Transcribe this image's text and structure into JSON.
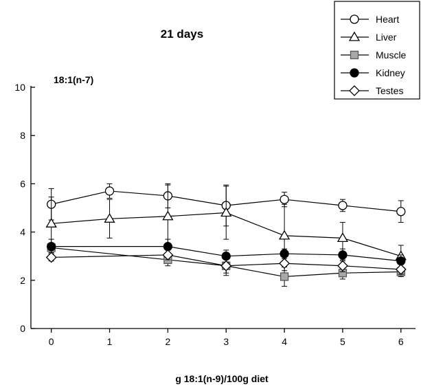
{
  "chart_data": {
    "type": "line",
    "title": "21 days",
    "subtitle": "18:1(n-7)",
    "xlabel": "g 18:1(n-9)/100g diet",
    "ylabel": "",
    "x": [
      0,
      1,
      2,
      3,
      4,
      5,
      6
    ],
    "x_ticks": [
      "0",
      "1",
      "2",
      "3",
      "4",
      "5",
      "6"
    ],
    "y_ticks": [
      "0",
      "2",
      "4",
      "6",
      "8",
      "10"
    ],
    "xlim": [
      -0.35,
      6.25
    ],
    "ylim": [
      0,
      10
    ],
    "grid": false,
    "legend_position": "top-right",
    "series": [
      {
        "name": "Heart",
        "marker": "circle-open",
        "x": [
          0,
          1,
          2,
          3,
          4,
          5,
          6
        ],
        "values": [
          5.15,
          5.7,
          5.5,
          5.1,
          5.35,
          5.1,
          4.85
        ],
        "errors": [
          0.65,
          0.3,
          0.5,
          0.85,
          0.3,
          0.25,
          0.45
        ]
      },
      {
        "name": "Liver",
        "marker": "triangle-open",
        "x": [
          0,
          1,
          2,
          3,
          4,
          5,
          6
        ],
        "values": [
          4.35,
          4.55,
          4.65,
          4.8,
          3.85,
          3.75,
          3.0
        ],
        "errors": [
          1.1,
          0.8,
          1.3,
          1.1,
          1.3,
          0.65,
          0.45
        ]
      },
      {
        "name": "Muscle",
        "marker": "square-gray",
        "x": [
          0,
          2,
          3,
          4,
          5,
          6
        ],
        "values": [
          3.35,
          2.85,
          2.6,
          2.15,
          2.3,
          2.35
        ],
        "errors": [
          0.2,
          0.25,
          0.4,
          0.4,
          0.25,
          0.2
        ]
      },
      {
        "name": "Kidney",
        "marker": "circle-filled",
        "x": [
          0,
          2,
          3,
          4,
          5,
          6
        ],
        "values": [
          3.4,
          3.4,
          3.0,
          3.1,
          3.05,
          2.8
        ],
        "errors": [
          0.3,
          0.3,
          0.25,
          0.2,
          0.25,
          0.25
        ]
      },
      {
        "name": "Testes",
        "marker": "diamond-open",
        "x": [
          0,
          2,
          3,
          4,
          5,
          6
        ],
        "values": [
          2.95,
          3.05,
          2.6,
          2.7,
          2.6,
          2.45
        ],
        "errors": [
          0.15,
          0.2,
          0.3,
          0.3,
          0.25,
          0.2
        ]
      }
    ]
  }
}
